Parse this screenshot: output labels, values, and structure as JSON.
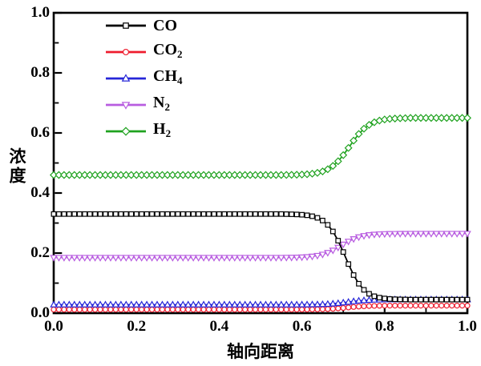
{
  "figure": {
    "background": "#ffffff",
    "frame_color": "#000000"
  },
  "chart_data": {
    "type": "line",
    "title": "",
    "xlabel": "轴向距离",
    "ylabel": "浓度",
    "xlim": [
      0.0,
      1.0
    ],
    "ylim": [
      0.0,
      1.0
    ],
    "x_tick_labels": [
      "0.0",
      "0.2",
      "0.4",
      "0.6",
      "0.8",
      "1.0"
    ],
    "y_tick_labels": [
      "0.0",
      "0.2",
      "0.4",
      "0.6",
      "0.8",
      "1.0"
    ],
    "major_tick_step": 0.2,
    "minor_tick_step": 0.1,
    "grid": false,
    "legend_position": "upper-left-inside",
    "x_start": 0.0,
    "x_step": 0.0125,
    "series": [
      {
        "name": "CO",
        "label_main": "CO",
        "label_sub": "",
        "color": "#000000",
        "marker": "square",
        "z": 5,
        "values": [
          0.33,
          0.33,
          0.33,
          0.33,
          0.33,
          0.33,
          0.33,
          0.33,
          0.33,
          0.33,
          0.33,
          0.33,
          0.33,
          0.33,
          0.33,
          0.33,
          0.33,
          0.33,
          0.33,
          0.33,
          0.33,
          0.33,
          0.33,
          0.33,
          0.33,
          0.33,
          0.33,
          0.33,
          0.33,
          0.33,
          0.33,
          0.33,
          0.33,
          0.33,
          0.33,
          0.33,
          0.33,
          0.33,
          0.33,
          0.33,
          0.33,
          0.33,
          0.33,
          0.33,
          0.33,
          0.3296,
          0.3292,
          0.3286,
          0.3276,
          0.3258,
          0.3227,
          0.3173,
          0.3084,
          0.2939,
          0.272,
          0.2413,
          0.2036,
          0.1634,
          0.1268,
          0.0979,
          0.0776,
          0.0644,
          0.0563,
          0.0516,
          0.0488,
          0.0471,
          0.0462,
          0.0457,
          0.0454,
          0.045,
          0.045,
          0.045,
          0.045,
          0.045,
          0.045,
          0.045,
          0.045,
          0.045,
          0.045,
          0.045,
          0.045
        ]
      },
      {
        "name": "CO2",
        "label_main": "CO",
        "label_sub": "2",
        "color": "#ee1c2e",
        "marker": "circle",
        "z": 1,
        "values": [
          0.012,
          0.012,
          0.012,
          0.012,
          0.012,
          0.012,
          0.012,
          0.012,
          0.012,
          0.012,
          0.012,
          0.012,
          0.012,
          0.012,
          0.012,
          0.012,
          0.012,
          0.012,
          0.012,
          0.012,
          0.012,
          0.012,
          0.012,
          0.012,
          0.012,
          0.012,
          0.012,
          0.012,
          0.012,
          0.012,
          0.012,
          0.012,
          0.012,
          0.012,
          0.012,
          0.012,
          0.012,
          0.012,
          0.012,
          0.012,
          0.012,
          0.012,
          0.012,
          0.012,
          0.012,
          0.012,
          0.012,
          0.012,
          0.0121,
          0.0122,
          0.0124,
          0.0126,
          0.013,
          0.0136,
          0.0145,
          0.0157,
          0.0172,
          0.0188,
          0.0205,
          0.0219,
          0.0229,
          0.0237,
          0.0242,
          0.0246,
          0.0248,
          0.025,
          0.025,
          0.025,
          0.025,
          0.025,
          0.025,
          0.025,
          0.025,
          0.025,
          0.025,
          0.025,
          0.025,
          0.025,
          0.025,
          0.025,
          0.025
        ]
      },
      {
        "name": "CH4",
        "label_main": "CH",
        "label_sub": "4",
        "color": "#2626d8",
        "marker": "triangle-up",
        "z": 2,
        "values": [
          0.028,
          0.028,
          0.028,
          0.028,
          0.028,
          0.028,
          0.028,
          0.028,
          0.028,
          0.028,
          0.028,
          0.028,
          0.028,
          0.028,
          0.028,
          0.028,
          0.028,
          0.028,
          0.028,
          0.028,
          0.028,
          0.028,
          0.028,
          0.028,
          0.028,
          0.028,
          0.028,
          0.028,
          0.028,
          0.028,
          0.028,
          0.028,
          0.028,
          0.028,
          0.028,
          0.028,
          0.028,
          0.028,
          0.028,
          0.028,
          0.028,
          0.028,
          0.028,
          0.028,
          0.028,
          0.028,
          0.028,
          0.028,
          0.0282,
          0.0283,
          0.0285,
          0.0288,
          0.0293,
          0.0301,
          0.0312,
          0.0328,
          0.0348,
          0.0369,
          0.0391,
          0.0409,
          0.0423,
          0.0433,
          0.044,
          0.0444,
          0.0447,
          0.045,
          0.045,
          0.045,
          0.045,
          0.045,
          0.045,
          0.045,
          0.045,
          0.045,
          0.045,
          0.045,
          0.045,
          0.045,
          0.045,
          0.045,
          0.045
        ]
      },
      {
        "name": "N2",
        "label_main": "N",
        "label_sub": "2",
        "color": "#b85ce0",
        "marker": "triangle-down",
        "z": 3,
        "values": [
          0.185,
          0.185,
          0.185,
          0.185,
          0.185,
          0.185,
          0.185,
          0.185,
          0.185,
          0.185,
          0.185,
          0.185,
          0.185,
          0.185,
          0.185,
          0.185,
          0.185,
          0.185,
          0.185,
          0.185,
          0.185,
          0.185,
          0.185,
          0.185,
          0.185,
          0.185,
          0.185,
          0.185,
          0.185,
          0.185,
          0.185,
          0.185,
          0.185,
          0.185,
          0.185,
          0.185,
          0.185,
          0.185,
          0.185,
          0.185,
          0.185,
          0.185,
          0.185,
          0.185,
          0.185,
          0.1853,
          0.1855,
          0.1859,
          0.1865,
          0.1875,
          0.1891,
          0.1917,
          0.1956,
          0.2014,
          0.2092,
          0.2188,
          0.2292,
          0.239,
          0.2472,
          0.2534,
          0.2577,
          0.2605,
          0.2622,
          0.2633,
          0.264,
          0.2644,
          0.2647,
          0.2648,
          0.2649,
          0.265,
          0.265,
          0.265,
          0.265,
          0.265,
          0.265,
          0.265,
          0.265,
          0.265,
          0.265,
          0.265,
          0.265
        ]
      },
      {
        "name": "H2",
        "label_main": "H",
        "label_sub": "2",
        "color": "#1fa21f",
        "marker": "diamond",
        "z": 4,
        "values": [
          0.46,
          0.46,
          0.46,
          0.46,
          0.46,
          0.46,
          0.46,
          0.46,
          0.46,
          0.46,
          0.46,
          0.46,
          0.46,
          0.46,
          0.46,
          0.46,
          0.46,
          0.46,
          0.46,
          0.46,
          0.46,
          0.46,
          0.46,
          0.46,
          0.46,
          0.46,
          0.46,
          0.46,
          0.46,
          0.46,
          0.46,
          0.46,
          0.46,
          0.46,
          0.46,
          0.46,
          0.46,
          0.46,
          0.46,
          0.46,
          0.46,
          0.46,
          0.46,
          0.46,
          0.46,
          0.4603,
          0.4606,
          0.4609,
          0.4616,
          0.4626,
          0.4644,
          0.4672,
          0.4719,
          0.4792,
          0.4902,
          0.5058,
          0.5262,
          0.5501,
          0.5745,
          0.5966,
          0.6141,
          0.6269,
          0.6356,
          0.6412,
          0.6447,
          0.6468,
          0.648,
          0.6488,
          0.6493,
          0.65,
          0.65,
          0.65,
          0.65,
          0.65,
          0.65,
          0.65,
          0.65,
          0.65,
          0.65,
          0.65,
          0.65
        ]
      }
    ]
  }
}
